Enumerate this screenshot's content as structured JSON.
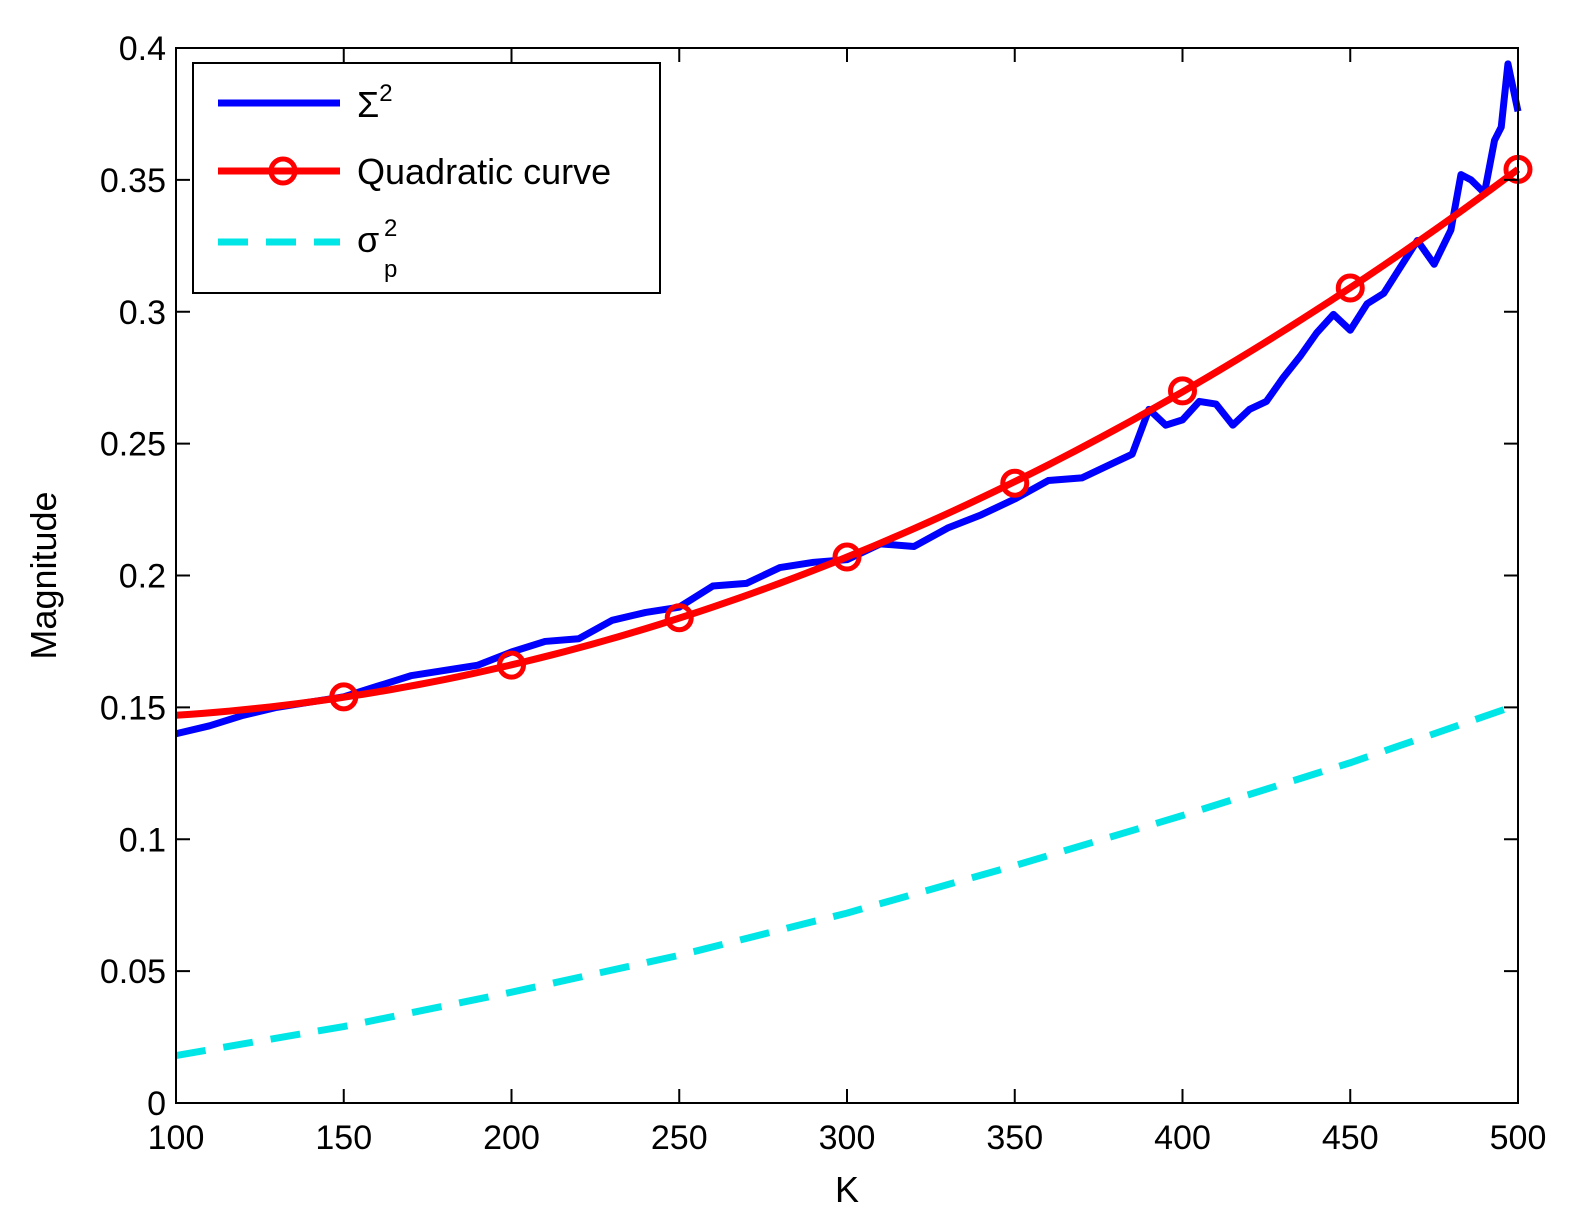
{
  "chart_data": {
    "type": "line",
    "xlabel": "K",
    "ylabel": "Magnitude",
    "xlim": [
      100,
      500
    ],
    "ylim": [
      0,
      0.4
    ],
    "xticks": [
      100,
      150,
      200,
      250,
      300,
      350,
      400,
      450,
      500
    ],
    "xtick_labels": [
      "100",
      "150",
      "200",
      "250",
      "300",
      "350",
      "400",
      "450",
      "500"
    ],
    "yticks": [
      0,
      0.05,
      0.1,
      0.15,
      0.2,
      0.25,
      0.3,
      0.35,
      0.4
    ],
    "ytick_labels": [
      "0",
      "0.05",
      "0.1",
      "0.15",
      "0.2",
      "0.25",
      "0.3",
      "0.35",
      "0.4"
    ],
    "grid": false,
    "legend_position": "top-left",
    "series": [
      {
        "legend_base": "Σ",
        "legend_sup": "2",
        "color": "#0000ff",
        "style": "solid",
        "x": [
          100,
          110,
          120,
          130,
          140,
          150,
          160,
          170,
          180,
          190,
          200,
          210,
          220,
          230,
          240,
          250,
          260,
          270,
          280,
          290,
          300,
          310,
          320,
          330,
          340,
          350,
          360,
          370,
          380,
          385,
          390,
          395,
          400,
          405,
          410,
          415,
          420,
          425,
          430,
          435,
          440,
          445,
          450,
          455,
          460,
          465,
          470,
          475,
          480,
          483,
          486,
          490,
          493,
          495,
          497,
          500
        ],
        "y": [
          0.14,
          0.143,
          0.147,
          0.15,
          0.152,
          0.154,
          0.158,
          0.162,
          0.164,
          0.166,
          0.171,
          0.175,
          0.176,
          0.183,
          0.186,
          0.188,
          0.196,
          0.197,
          0.203,
          0.205,
          0.206,
          0.212,
          0.211,
          0.218,
          0.223,
          0.229,
          0.236,
          0.237,
          0.243,
          0.246,
          0.263,
          0.257,
          0.259,
          0.266,
          0.265,
          0.257,
          0.263,
          0.266,
          0.275,
          0.283,
          0.292,
          0.299,
          0.293,
          0.303,
          0.307,
          0.317,
          0.327,
          0.318,
          0.331,
          0.352,
          0.35,
          0.345,
          0.365,
          0.37,
          0.394,
          0.376
        ]
      },
      {
        "legend_label": "Quadratic curve",
        "color": "#ff0000",
        "style": "solid",
        "marker": "circle",
        "x": [
          100,
          150,
          200,
          250,
          300,
          350,
          400,
          450,
          500
        ],
        "y": [
          0.147,
          0.154,
          0.166,
          0.184,
          0.207,
          0.235,
          0.27,
          0.309,
          0.354
        ],
        "marker_x": [
          150,
          200,
          250,
          300,
          350,
          400,
          450,
          500
        ]
      },
      {
        "legend_base": "σ",
        "legend_sup": "2",
        "legend_sub": "p",
        "color": "#00e6e6",
        "style": "dashed",
        "x": [
          100,
          150,
          200,
          250,
          300,
          350,
          400,
          450,
          500
        ],
        "y": [
          0.018,
          0.029,
          0.042,
          0.056,
          0.072,
          0.09,
          0.109,
          0.129,
          0.151
        ]
      }
    ]
  }
}
